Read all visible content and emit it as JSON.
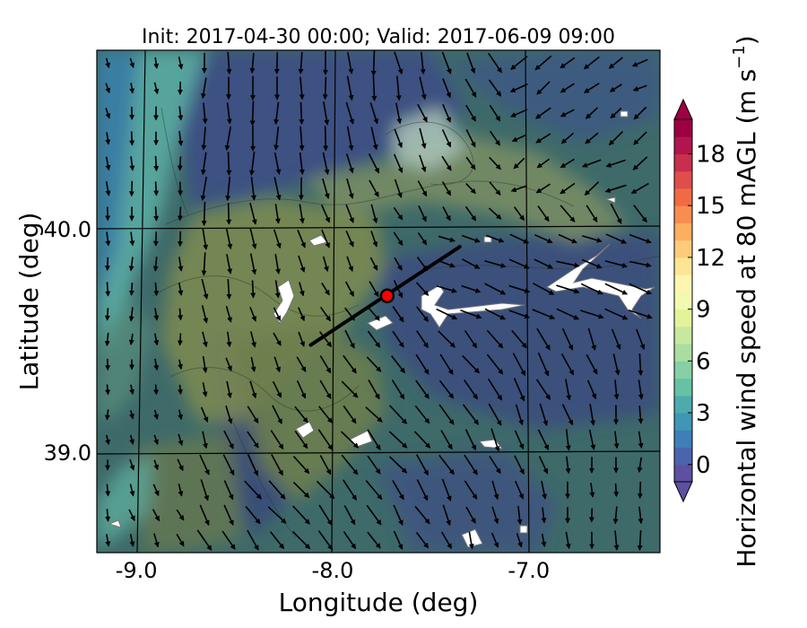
{
  "title": "Init: 2017-04-30 00:00; Valid: 2017-06-09 09:00",
  "x_axis": {
    "label": "Longitude (deg)",
    "range": [
      -9.22,
      -6.35
    ],
    "ticks": [
      -9.0,
      -8.0,
      -7.0
    ],
    "tick_labels": [
      "-9.0",
      "-8.0",
      "-7.0"
    ]
  },
  "y_axis": {
    "label": "Latitude (deg)",
    "range": [
      38.55,
      40.8
    ],
    "ticks": [
      39.0,
      40.0
    ],
    "tick_labels": [
      "39.0",
      "40.0"
    ]
  },
  "colorbar": {
    "label_main": "Horizontal wind speed at 80 mAGL (m s",
    "label_exp": "−1",
    "label_close": ")",
    "range": [
      -1,
      20
    ],
    "ticks": [
      0,
      3,
      6,
      9,
      12,
      15,
      18
    ],
    "tick_labels": [
      "0",
      "3",
      "6",
      "9",
      "12",
      "15",
      "18"
    ],
    "extend": "both",
    "colors": [
      "#5e4fa2",
      "#4a65ad",
      "#3e7fb9",
      "#3f96b7",
      "#4dacab",
      "#66c2a4",
      "#87cfa4",
      "#a9dda2",
      "#c7e89e",
      "#e2f39a",
      "#f3f9ae",
      "#fef6b0",
      "#fee596",
      "#fdcb7b",
      "#fdae61",
      "#f88d52",
      "#f06b44",
      "#df4e4b",
      "#c72f4d",
      "#b0164d",
      "#9e0142"
    ]
  },
  "overlay": {
    "transect_line": {
      "start": [
        -8.13,
        39.48
      ],
      "end": [
        -7.37,
        39.92
      ]
    },
    "marker_point": {
      "lon": -7.74,
      "lat": 39.7,
      "color": "#ff0000"
    },
    "wind_vectors": "quiver arrows, predominantly northwest wind (pointing south-southeast)"
  }
}
